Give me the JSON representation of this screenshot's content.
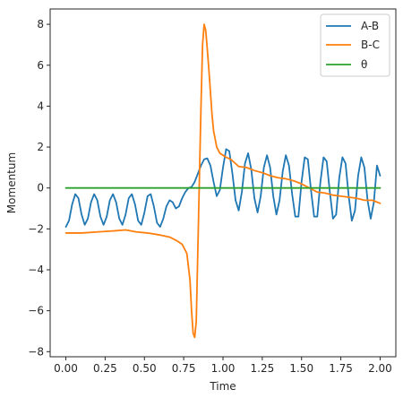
{
  "chart_data": {
    "type": "line",
    "title": "",
    "xlabel": "Time",
    "ylabel": "Momentum",
    "xlim": [
      -0.1,
      2.1
    ],
    "ylim": [
      -8.25,
      8.75
    ],
    "x_ticks": [
      0.0,
      0.25,
      0.5,
      0.75,
      1.0,
      1.25,
      1.5,
      1.75,
      2.0
    ],
    "x_tick_labels": [
      "0.00",
      "0.25",
      "0.50",
      "0.75",
      "1.00",
      "1.25",
      "1.50",
      "1.75",
      "2.00"
    ],
    "y_ticks": [
      -8,
      -6,
      -4,
      -2,
      0,
      2,
      4,
      6,
      8
    ],
    "y_tick_labels": [
      "−8",
      "−6",
      "−4",
      "−2",
      "0",
      "2",
      "4",
      "6",
      "8"
    ],
    "grid": false,
    "legend": {
      "placement": "top-right",
      "entries": [
        "A-B",
        "B-C",
        "θ"
      ]
    },
    "series": [
      {
        "name": "A-B",
        "color": "#1f77b4",
        "x": [
          0.0,
          0.02,
          0.04,
          0.06,
          0.08,
          0.1,
          0.12,
          0.14,
          0.16,
          0.18,
          0.2,
          0.22,
          0.24,
          0.26,
          0.28,
          0.3,
          0.32,
          0.34,
          0.36,
          0.38,
          0.4,
          0.42,
          0.44,
          0.46,
          0.48,
          0.5,
          0.52,
          0.54,
          0.56,
          0.58,
          0.6,
          0.62,
          0.64,
          0.66,
          0.68,
          0.7,
          0.72,
          0.74,
          0.76,
          0.78,
          0.8,
          0.82,
          0.84,
          0.86,
          0.88,
          0.9,
          0.92,
          0.94,
          0.96,
          0.98,
          1.0,
          1.02,
          1.04,
          1.06,
          1.08,
          1.1,
          1.12,
          1.14,
          1.16,
          1.18,
          1.2,
          1.22,
          1.24,
          1.26,
          1.28,
          1.3,
          1.32,
          1.34,
          1.36,
          1.38,
          1.4,
          1.42,
          1.44,
          1.46,
          1.48,
          1.5,
          1.52,
          1.54,
          1.56,
          1.58,
          1.6,
          1.62,
          1.64,
          1.66,
          1.68,
          1.7,
          1.72,
          1.74,
          1.76,
          1.78,
          1.8,
          1.82,
          1.84,
          1.86,
          1.88,
          1.9,
          1.92,
          1.94,
          1.96,
          1.98,
          2.0
        ],
        "values": [
          -1.9,
          -1.6,
          -0.8,
          -0.3,
          -0.5,
          -1.3,
          -1.8,
          -1.5,
          -0.7,
          -0.3,
          -0.6,
          -1.4,
          -1.8,
          -1.4,
          -0.6,
          -0.3,
          -0.7,
          -1.5,
          -1.8,
          -1.3,
          -0.5,
          -0.3,
          -0.8,
          -1.6,
          -1.8,
          -1.2,
          -0.4,
          -0.3,
          -0.9,
          -1.7,
          -1.9,
          -1.5,
          -0.9,
          -0.6,
          -0.7,
          -1.0,
          -0.9,
          -0.5,
          -0.2,
          0.0,
          0.05,
          0.3,
          0.7,
          1.1,
          1.4,
          1.45,
          1.1,
          0.3,
          -0.4,
          -0.1,
          1.0,
          1.9,
          1.8,
          0.7,
          -0.6,
          -1.1,
          -0.2,
          1.2,
          1.7,
          0.9,
          -0.5,
          -1.2,
          -0.4,
          1.0,
          1.6,
          1.0,
          -0.4,
          -1.3,
          -0.6,
          0.8,
          1.6,
          1.1,
          -0.3,
          -1.4,
          -1.4,
          0.3,
          1.5,
          1.4,
          -0.1,
          -1.4,
          -1.4,
          0.3,
          1.5,
          1.3,
          -0.2,
          -1.5,
          -1.3,
          0.5,
          1.5,
          1.2,
          -0.4,
          -1.6,
          -1.1,
          0.6,
          1.5,
          1.0,
          -0.6,
          -1.5,
          -0.7,
          1.1,
          0.6
        ]
      },
      {
        "name": "B-C",
        "color": "#ff7f0e",
        "x": [
          0.0,
          0.1,
          0.2,
          0.3,
          0.38,
          0.45,
          0.52,
          0.6,
          0.66,
          0.7,
          0.74,
          0.77,
          0.79,
          0.8,
          0.81,
          0.82,
          0.83,
          0.84,
          0.85,
          0.86,
          0.87,
          0.88,
          0.89,
          0.9,
          0.91,
          0.92,
          0.93,
          0.94,
          0.96,
          0.98,
          1.0,
          1.02,
          1.05,
          1.1,
          1.15,
          1.2,
          1.25,
          1.3,
          1.35,
          1.4,
          1.45,
          1.5,
          1.55,
          1.6,
          1.65,
          1.7,
          1.75,
          1.8,
          1.85,
          1.9,
          1.95,
          2.0
        ],
        "values": [
          -2.2,
          -2.2,
          -2.15,
          -2.1,
          -2.05,
          -2.15,
          -2.2,
          -2.3,
          -2.4,
          -2.55,
          -2.75,
          -3.2,
          -4.5,
          -6.0,
          -7.1,
          -7.3,
          -6.5,
          -3.0,
          0.5,
          4.0,
          7.0,
          8.0,
          7.7,
          6.8,
          5.8,
          4.7,
          3.6,
          2.8,
          2.0,
          1.7,
          1.6,
          1.5,
          1.4,
          1.05,
          1.0,
          0.85,
          0.75,
          0.6,
          0.5,
          0.45,
          0.35,
          0.2,
          0.0,
          -0.2,
          -0.25,
          -0.35,
          -0.4,
          -0.45,
          -0.5,
          -0.6,
          -0.6,
          -0.75
        ]
      },
      {
        "name": "θ",
        "color": "#2ca02c",
        "x": [
          0.0,
          2.0
        ],
        "values": [
          0.0,
          0.0
        ]
      }
    ]
  }
}
